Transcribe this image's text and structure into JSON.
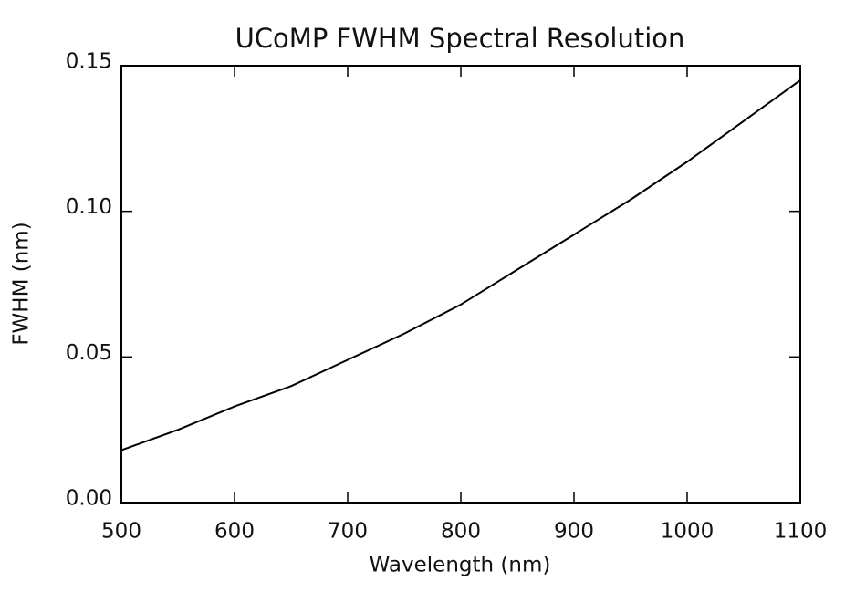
{
  "chart_data": {
    "type": "line",
    "title": "UCoMP FWHM Spectral Resolution",
    "x_label": "Wavelength (nm)",
    "y_label": "FWHM (nm)",
    "x": [
      500,
      550,
      600,
      650,
      700,
      750,
      800,
      850,
      900,
      950,
      1000,
      1050,
      1100
    ],
    "series": [
      {
        "color": "#000000",
        "values": [
          0.018,
          0.025,
          0.033,
          0.04,
          0.049,
          0.058,
          0.068,
          0.08,
          0.092,
          0.104,
          0.117,
          0.131,
          0.145
        ]
      }
    ],
    "xlim": [
      500,
      1100
    ],
    "xticks": [
      500,
      600,
      700,
      800,
      900,
      1000,
      1100
    ],
    "ylim": [
      0,
      0.15
    ],
    "yticks": [
      {
        "value": 0,
        "label": "0.00"
      },
      {
        "value": 0.05,
        "label": "0.05"
      },
      {
        "value": 0.1,
        "label": "0.10"
      },
      {
        "value": 0.15,
        "label": "0.15"
      }
    ]
  }
}
